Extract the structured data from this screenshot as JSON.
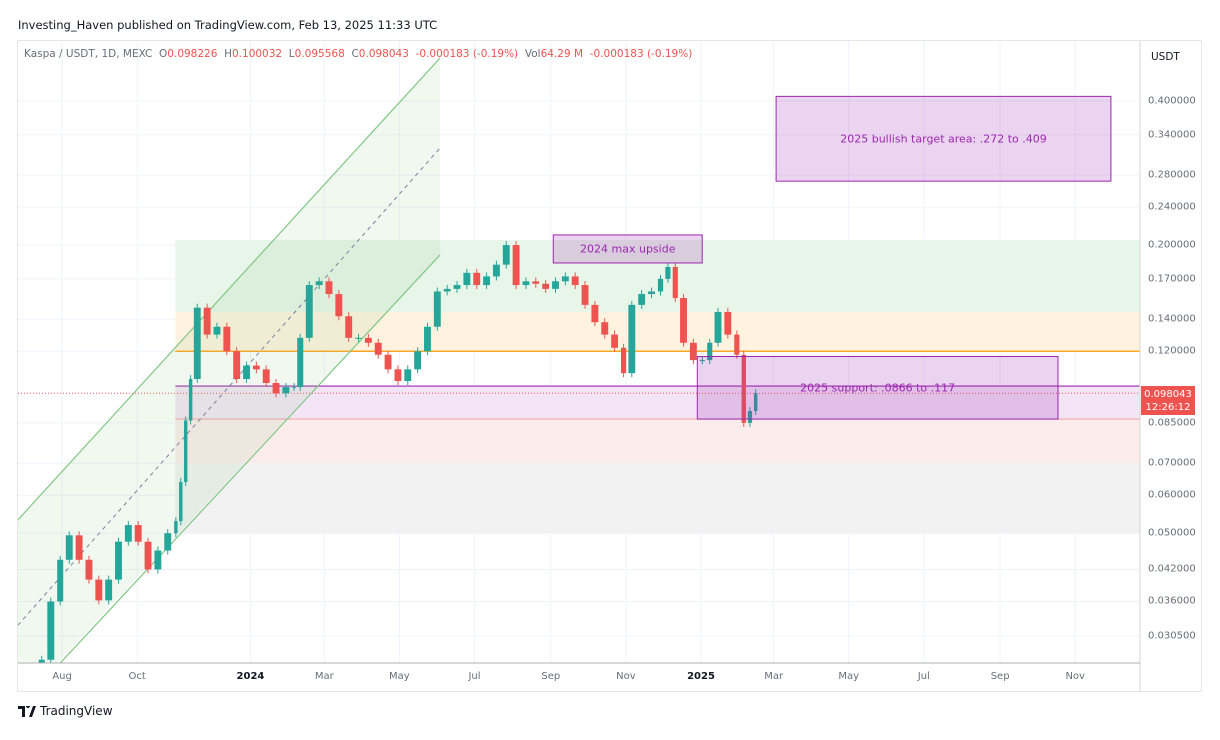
{
  "header": {
    "publisher": "Investing_Haven published on TradingView.com, Feb 13, 2025 11:33 UTC"
  },
  "legend": {
    "symbol": "Kaspa / USDT, 1D, MEXC",
    "o_label": "O",
    "o": "0.098226",
    "h_label": "H",
    "h": "0.100032",
    "l_label": "L",
    "l": "0.095568",
    "c_label": "C",
    "c": "0.098043",
    "change": "-0.000183 (-0.19%)",
    "vol_label": "Vol",
    "vol": "64.29 M",
    "vol_change": "-0.000183 (-0.19%)"
  },
  "price_axis": {
    "unit": "USDT",
    "last_price": "0.098043",
    "countdown": "12:26:12"
  },
  "footer": {
    "brand": "TradingView"
  },
  "colors": {
    "up": "#26a69a",
    "down": "#ef5350",
    "channel": "#81c784",
    "box": "#9c27b0",
    "orange_line": "#ff9800"
  },
  "chart_data": {
    "type": "candlestick",
    "scale": "log",
    "ylim": [
      0.027,
      0.45
    ],
    "grid": true,
    "y_ticks": [
      0.4,
      0.34,
      0.28,
      0.24,
      0.2,
      0.17,
      0.14,
      0.12,
      0.085,
      0.07,
      0.06,
      0.05,
      0.042,
      0.036,
      0.0305
    ],
    "y_tick_labels": [
      "0.400000",
      "0.340000",
      "0.280000",
      "0.240000",
      "0.200000",
      "0.170000",
      "0.140000",
      "0.120000",
      "0.085000",
      "0.070000",
      "0.060000",
      "0.050000",
      "0.042000",
      "0.036000",
      "0.030500"
    ],
    "x_ticks": [
      {
        "date": "2023-08-01",
        "label": "Aug",
        "year": false
      },
      {
        "date": "2023-10-01",
        "label": "Oct",
        "year": false
      },
      {
        "date": "2024-01-01",
        "label": "2024",
        "year": true
      },
      {
        "date": "2024-03-01",
        "label": "Mar",
        "year": false
      },
      {
        "date": "2024-05-01",
        "label": "May",
        "year": false
      },
      {
        "date": "2024-07-01",
        "label": "Jul",
        "year": false
      },
      {
        "date": "2024-09-01",
        "label": "Sep",
        "year": false
      },
      {
        "date": "2024-11-01",
        "label": "Nov",
        "year": false
      },
      {
        "date": "2025-01-01",
        "label": "2025",
        "year": true
      },
      {
        "date": "2025-03-01",
        "label": "Mar",
        "year": false
      },
      {
        "date": "2025-05-01",
        "label": "May",
        "year": false
      },
      {
        "date": "2025-07-01",
        "label": "Jul",
        "year": false
      },
      {
        "date": "2025-09-01",
        "label": "Sep",
        "year": false
      },
      {
        "date": "2025-11-01",
        "label": "Nov",
        "year": false
      }
    ],
    "candles": [
      [
        "2023-07-13",
        0.0272
      ],
      [
        "2023-07-20",
        0.036
      ],
      [
        "2023-07-28",
        0.044
      ],
      [
        "2023-08-04",
        0.0495
      ],
      [
        "2023-08-12",
        0.044
      ],
      [
        "2023-08-20",
        0.04
      ],
      [
        "2023-08-28",
        0.0362
      ],
      [
        "2023-09-05",
        0.04
      ],
      [
        "2023-09-13",
        0.048
      ],
      [
        "2023-09-21",
        0.052
      ],
      [
        "2023-09-29",
        0.048
      ],
      [
        "2023-10-07",
        0.042
      ],
      [
        "2023-10-15",
        0.046
      ],
      [
        "2023-10-23",
        0.05
      ],
      [
        "2023-10-31",
        0.053
      ],
      [
        "2023-11-04",
        0.064
      ],
      [
        "2023-11-08",
        0.086
      ],
      [
        "2023-11-12",
        0.105
      ],
      [
        "2023-11-16",
        0.148
      ],
      [
        "2023-11-24",
        0.13
      ],
      [
        "2023-12-02",
        0.135
      ],
      [
        "2023-12-10",
        0.12
      ],
      [
        "2023-12-18",
        0.105
      ],
      [
        "2023-12-26",
        0.112
      ],
      [
        "2024-01-03",
        0.11
      ],
      [
        "2024-01-11",
        0.103
      ],
      [
        "2024-01-19",
        0.098
      ],
      [
        "2024-01-27",
        0.101
      ],
      [
        "2024-02-04",
        0.101
      ],
      [
        "2024-02-08",
        0.128
      ],
      [
        "2024-02-15",
        0.165
      ],
      [
        "2024-02-23",
        0.168
      ],
      [
        "2024-03-02",
        0.158
      ],
      [
        "2024-03-10",
        0.142
      ],
      [
        "2024-03-18",
        0.128
      ],
      [
        "2024-03-26",
        0.128
      ],
      [
        "2024-04-03",
        0.125
      ],
      [
        "2024-04-11",
        0.118
      ],
      [
        "2024-04-19",
        0.11
      ],
      [
        "2024-04-27",
        0.104
      ],
      [
        "2024-05-05",
        0.11
      ],
      [
        "2024-05-13",
        0.12
      ],
      [
        "2024-05-21",
        0.135
      ],
      [
        "2024-05-29",
        0.16
      ],
      [
        "2024-06-06",
        0.162
      ],
      [
        "2024-06-14",
        0.165
      ],
      [
        "2024-06-22",
        0.175
      ],
      [
        "2024-06-30",
        0.165
      ],
      [
        "2024-07-08",
        0.172
      ],
      [
        "2024-07-16",
        0.182
      ],
      [
        "2024-07-24",
        0.2
      ],
      [
        "2024-08-01",
        0.165
      ],
      [
        "2024-08-09",
        0.168
      ],
      [
        "2024-08-17",
        0.166
      ],
      [
        "2024-08-25",
        0.162
      ],
      [
        "2024-09-02",
        0.168
      ],
      [
        "2024-09-10",
        0.172
      ],
      [
        "2024-09-18",
        0.165
      ],
      [
        "2024-09-26",
        0.15
      ],
      [
        "2024-10-04",
        0.138
      ],
      [
        "2024-10-12",
        0.13
      ],
      [
        "2024-10-20",
        0.122
      ],
      [
        "2024-10-28",
        0.108
      ],
      [
        "2024-11-03",
        0.15
      ],
      [
        "2024-11-11",
        0.158
      ],
      [
        "2024-11-19",
        0.16
      ],
      [
        "2024-11-27",
        0.17
      ],
      [
        "2024-12-03",
        0.18
      ],
      [
        "2024-12-09",
        0.155
      ],
      [
        "2024-12-15",
        0.125
      ],
      [
        "2024-12-23",
        0.115
      ],
      [
        "2024-12-31",
        0.115
      ],
      [
        "2025-01-06",
        0.125
      ],
      [
        "2025-01-12",
        0.145
      ],
      [
        "2025-01-20",
        0.13
      ],
      [
        "2025-01-28",
        0.118
      ],
      [
        "2025-02-03",
        0.085
      ],
      [
        "2025-02-08",
        0.09
      ],
      [
        "2025-02-13",
        0.098043
      ]
    ],
    "zones": [
      {
        "name": "green",
        "from": "2023-11-01",
        "low": 0.145,
        "high": 0.205,
        "color": "#e8f5e9"
      },
      {
        "name": "orange",
        "from": "2023-11-01",
        "low": 0.12,
        "high": 0.145,
        "color": "#fff3e0"
      },
      {
        "name": "purple",
        "from": "2023-11-01",
        "low": 0.0866,
        "high": 0.1015,
        "color": "#f3e5f5"
      },
      {
        "name": "red",
        "from": "2023-11-01",
        "low": 0.07,
        "high": 0.0866,
        "color": "#fdecec"
      },
      {
        "name": "gray",
        "from": "2023-11-01",
        "low": 0.05,
        "high": 0.07,
        "color": "#f2f2f2"
      }
    ],
    "hlines": [
      {
        "price": 0.12,
        "color": "#ff9800"
      },
      {
        "price": 0.1015,
        "color": "#9c27b0"
      },
      {
        "price": 0.0866,
        "color": "#f4a9a8"
      }
    ],
    "channel": {
      "upper": [
        [
          "2023-06-26",
          0.0533
        ],
        [
          "2024-06-03",
          0.492
        ]
      ],
      "lower": [
        [
          "2023-07-30",
          0.0267
        ],
        [
          "2024-06-03",
          0.1907
        ]
      ],
      "middle": [
        [
          "2023-06-26",
          0.0321
        ],
        [
          "2024-06-03",
          0.319
        ]
      ]
    },
    "annotations": [
      {
        "text": "2025 bullish target area: .272 to .409",
        "from": "2025-03-03",
        "to": "2025-11-30",
        "low": 0.272,
        "high": 0.409
      },
      {
        "text": "2024 max upside",
        "from": "2024-09-03",
        "to": "2025-01-02",
        "low": 0.1835,
        "high": 0.21
      },
      {
        "text": "2025 support: .0866 to .117",
        "from": "2024-12-29",
        "to": "2025-10-18",
        "low": 0.0866,
        "high": 0.117
      }
    ]
  }
}
